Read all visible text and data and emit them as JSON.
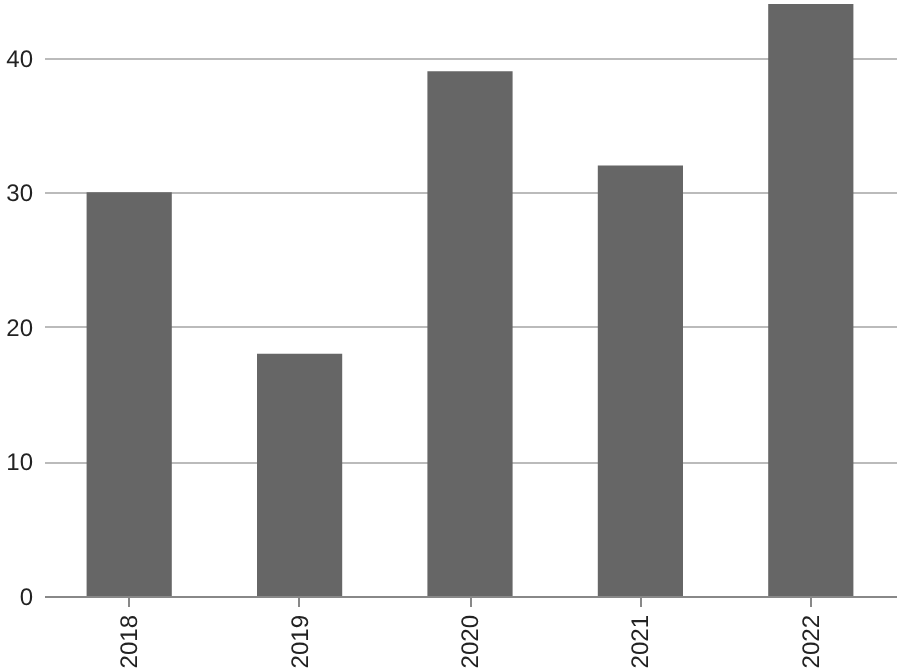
{
  "chart_data": {
    "type": "bar",
    "categories": [
      "2018",
      "2019",
      "2020",
      "2021",
      "2022"
    ],
    "values": [
      30,
      18,
      39,
      32,
      44
    ],
    "color": "#666666",
    "ylim": [
      0,
      44
    ],
    "yticks": [
      0,
      10,
      20,
      30,
      40
    ],
    "grid": "y"
  }
}
